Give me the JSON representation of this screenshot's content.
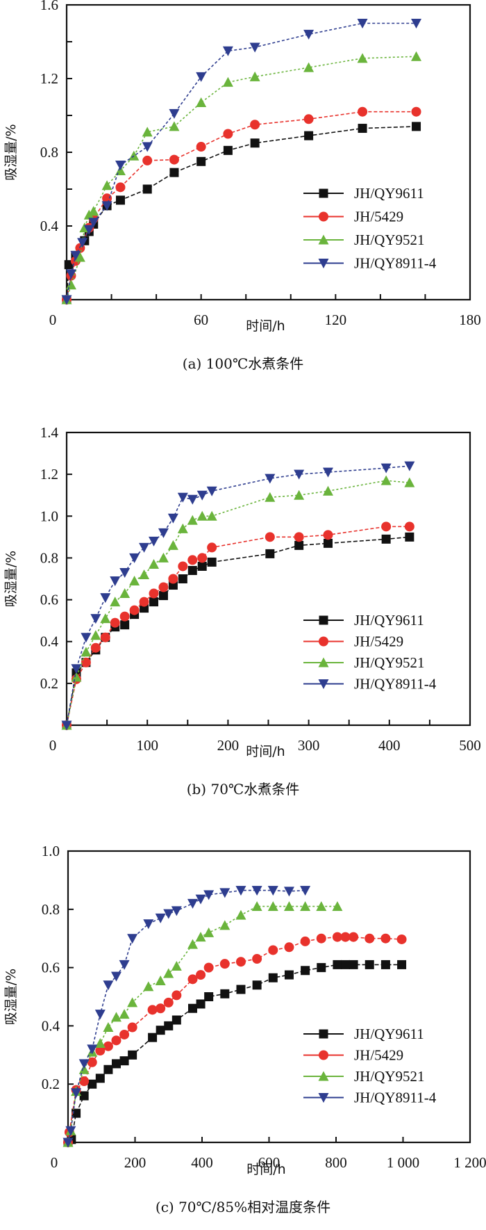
{
  "figure": {
    "series_styles": [
      {
        "name": "JH/QY9611",
        "color": "#111111",
        "marker": "square"
      },
      {
        "name": "JH/5429",
        "color": "#e8322c",
        "marker": "circle"
      },
      {
        "name": "JH/QY9521",
        "color": "#6ab43c",
        "marker": "triangle-up"
      },
      {
        "name": "JH/QY8911-4",
        "color": "#2e3d8f",
        "marker": "triangle-down"
      }
    ]
  },
  "chart_data": [
    {
      "type": "line",
      "caption": "(a) 100℃水煮条件",
      "title": "",
      "xlabel": "时间/h",
      "ylabel": "吸湿量/%",
      "xlim": [
        0,
        180
      ],
      "ylim": [
        0,
        1.6
      ],
      "xticks": [
        0,
        60,
        120,
        180
      ],
      "xminor_step": 20,
      "xtick_labels": [
        "0",
        "60",
        "120",
        "180"
      ],
      "yticks": [
        0.4,
        0.8,
        1.2,
        1.6
      ],
      "yminor_step": 0.2,
      "ytick_labels": [
        "0.4",
        "0.8",
        "1.2",
        "1.6"
      ],
      "legend": "center-right",
      "grid": false,
      "series": [
        {
          "name": "JH/QY9611",
          "x": [
            0,
            1,
            4,
            8,
            10,
            12,
            18,
            24,
            36,
            48,
            60,
            72,
            84,
            108,
            132,
            156
          ],
          "values": [
            0,
            0.19,
            0.24,
            0.32,
            0.37,
            0.41,
            0.51,
            0.54,
            0.6,
            0.69,
            0.75,
            0.81,
            0.85,
            0.89,
            0.93,
            0.94
          ]
        },
        {
          "name": "JH/5429",
          "x": [
            0,
            2,
            4,
            6,
            10,
            12,
            18,
            24,
            36,
            48,
            60,
            72,
            84,
            108,
            132,
            156
          ],
          "values": [
            0,
            0.13,
            0.21,
            0.28,
            0.39,
            0.44,
            0.55,
            0.61,
            0.755,
            0.76,
            0.83,
            0.9,
            0.95,
            0.98,
            1.02,
            1.02
          ]
        },
        {
          "name": "JH/QY9521",
          "x": [
            0,
            2,
            6,
            8,
            10,
            12,
            18,
            24,
            30,
            36,
            48,
            60,
            72,
            84,
            108,
            132,
            156
          ],
          "values": [
            0,
            0.08,
            0.23,
            0.39,
            0.46,
            0.48,
            0.62,
            0.7,
            0.78,
            0.91,
            0.94,
            1.07,
            1.18,
            1.21,
            1.26,
            1.31,
            1.32
          ]
        },
        {
          "name": "JH/QY8911-4",
          "x": [
            0,
            2,
            4,
            7,
            10,
            12,
            18,
            24,
            36,
            48,
            60,
            72,
            84,
            108,
            132,
            156
          ],
          "values": [
            0,
            0.14,
            0.24,
            0.31,
            0.38,
            0.42,
            0.51,
            0.73,
            0.83,
            1.01,
            1.21,
            1.35,
            1.37,
            1.44,
            1.5,
            1.5
          ]
        }
      ]
    },
    {
      "type": "line",
      "caption": "(b) 70℃水煮条件",
      "title": "",
      "xlabel": "时间/h",
      "ylabel": "吸湿量/%",
      "xlim": [
        0,
        500
      ],
      "ylim": [
        0,
        1.4
      ],
      "xticks": [
        0,
        100,
        200,
        300,
        400,
        500
      ],
      "xminor_step": 50,
      "xtick_labels": [
        "0",
        "100",
        "200",
        "300",
        "400",
        "500"
      ],
      "yticks": [
        0.2,
        0.4,
        0.6,
        0.8,
        1.0,
        1.2,
        1.4
      ],
      "yminor_step": 0.2,
      "ytick_labels": [
        "0.2",
        "0.4",
        "0.6",
        "0.8",
        "1.0",
        "1.2",
        "1.4"
      ],
      "legend": "lower-right",
      "grid": false,
      "series": [
        {
          "name": "JH/QY9611",
          "x": [
            0,
            12,
            24,
            36,
            48,
            60,
            72,
            84,
            96,
            108,
            120,
            132,
            144,
            156,
            168,
            180,
            252,
            288,
            324,
            396,
            425
          ],
          "values": [
            0,
            0.25,
            0.3,
            0.36,
            0.42,
            0.47,
            0.48,
            0.53,
            0.56,
            0.59,
            0.62,
            0.67,
            0.7,
            0.74,
            0.76,
            0.78,
            0.82,
            0.86,
            0.87,
            0.89,
            0.9
          ]
        },
        {
          "name": "JH/5429",
          "x": [
            0,
            12,
            24,
            36,
            48,
            60,
            72,
            84,
            96,
            108,
            120,
            132,
            144,
            156,
            168,
            180,
            252,
            288,
            324,
            396,
            425
          ],
          "values": [
            0,
            0.22,
            0.3,
            0.37,
            0.42,
            0.49,
            0.52,
            0.55,
            0.59,
            0.63,
            0.66,
            0.7,
            0.76,
            0.79,
            0.8,
            0.85,
            0.9,
            0.9,
            0.91,
            0.95,
            0.95
          ]
        },
        {
          "name": "JH/QY9521",
          "x": [
            0,
            12,
            24,
            36,
            48,
            60,
            72,
            84,
            96,
            108,
            120,
            132,
            144,
            156,
            168,
            180,
            252,
            288,
            324,
            396,
            425
          ],
          "values": [
            0,
            0.23,
            0.35,
            0.43,
            0.51,
            0.59,
            0.63,
            0.69,
            0.72,
            0.77,
            0.8,
            0.86,
            0.94,
            0.98,
            1.0,
            1.0,
            1.09,
            1.1,
            1.12,
            1.17,
            1.16
          ]
        },
        {
          "name": "JH/QY8911-4",
          "x": [
            0,
            12,
            24,
            36,
            48,
            60,
            72,
            84,
            96,
            108,
            120,
            132,
            144,
            156,
            168,
            180,
            252,
            288,
            324,
            396,
            425
          ],
          "values": [
            0,
            0.27,
            0.42,
            0.51,
            0.61,
            0.69,
            0.73,
            0.8,
            0.85,
            0.88,
            0.92,
            0.99,
            1.09,
            1.08,
            1.1,
            1.12,
            1.18,
            1.2,
            1.21,
            1.23,
            1.24
          ]
        }
      ]
    },
    {
      "type": "line",
      "caption": "(c) 70℃/85%相对温度条件",
      "title": "",
      "xlabel": "时间/h",
      "ylabel": "吸湿量/%",
      "xlim": [
        0,
        1200
      ],
      "ylim": [
        0,
        1.0
      ],
      "xticks": [
        0,
        200,
        400,
        600,
        800,
        1000,
        1200
      ],
      "xminor_step": 200,
      "xtick_labels": [
        "0",
        "200",
        "400",
        "600",
        "800",
        "1 000",
        "1 200"
      ],
      "yticks": [
        0.2,
        0.4,
        0.6,
        0.8,
        1.0
      ],
      "yminor_step": 0.2,
      "ytick_labels": [
        "0.2",
        "0.4",
        "0.6",
        "0.8",
        "1.0"
      ],
      "legend": "lower-right",
      "grid": false,
      "series": [
        {
          "name": "JH/QY9611",
          "x": [
            0,
            10,
            24,
            48,
            72,
            96,
            120,
            144,
            168,
            192,
            252,
            276,
            300,
            324,
            372,
            396,
            420,
            468,
            516,
            564,
            612,
            660,
            708,
            756,
            804,
            828,
            852,
            900,
            948,
            996
          ],
          "values": [
            0,
            0.01,
            0.1,
            0.16,
            0.2,
            0.22,
            0.25,
            0.27,
            0.28,
            0.3,
            0.36,
            0.385,
            0.4,
            0.42,
            0.46,
            0.475,
            0.5,
            0.51,
            0.525,
            0.54,
            0.565,
            0.575,
            0.59,
            0.6,
            0.61,
            0.61,
            0.61,
            0.61,
            0.61,
            0.61
          ]
        },
        {
          "name": "JH/5429",
          "x": [
            0,
            4,
            24,
            48,
            72,
            96,
            120,
            144,
            168,
            192,
            252,
            276,
            300,
            324,
            372,
            396,
            420,
            468,
            516,
            564,
            612,
            660,
            708,
            756,
            804,
            828,
            852,
            900,
            948,
            996
          ],
          "values": [
            0,
            0.035,
            0.18,
            0.21,
            0.275,
            0.315,
            0.33,
            0.35,
            0.37,
            0.395,
            0.455,
            0.46,
            0.48,
            0.505,
            0.56,
            0.575,
            0.6,
            0.613,
            0.62,
            0.63,
            0.66,
            0.67,
            0.69,
            0.7,
            0.705,
            0.705,
            0.705,
            0.7,
            0.7,
            0.697
          ]
        },
        {
          "name": "JH/QY9521",
          "x": [
            0,
            8,
            24,
            48,
            72,
            96,
            120,
            144,
            168,
            192,
            240,
            276,
            300,
            324,
            372,
            396,
            420,
            468,
            516,
            564,
            612,
            660,
            708,
            756,
            804
          ],
          "values": [
            0,
            0.04,
            0.175,
            0.25,
            0.31,
            0.34,
            0.395,
            0.43,
            0.44,
            0.48,
            0.535,
            0.555,
            0.58,
            0.605,
            0.68,
            0.705,
            0.72,
            0.745,
            0.78,
            0.81,
            0.81,
            0.81,
            0.81,
            0.81,
            0.81
          ]
        },
        {
          "name": "JH/QY8911-4",
          "x": [
            0,
            8,
            24,
            48,
            72,
            96,
            120,
            144,
            168,
            192,
            240,
            276,
            300,
            324,
            372,
            396,
            420,
            468,
            516,
            564,
            612,
            660,
            708
          ],
          "values": [
            0,
            0.04,
            0.17,
            0.27,
            0.32,
            0.44,
            0.54,
            0.57,
            0.61,
            0.7,
            0.75,
            0.77,
            0.785,
            0.795,
            0.82,
            0.835,
            0.85,
            0.857,
            0.865,
            0.865,
            0.865,
            0.862,
            0.865
          ]
        }
      ]
    }
  ]
}
